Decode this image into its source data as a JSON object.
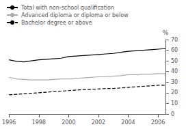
{
  "chart_data": {
    "type": "line",
    "x": [
      1996,
      1996.5,
      1997,
      1997.5,
      1998,
      1998.5,
      1999,
      1999.5,
      2000,
      2000.5,
      2001,
      2001.5,
      2002,
      2002.5,
      2003,
      2003.5,
      2004,
      2004.5,
      2005,
      2005.5,
      2006,
      2006.5
    ],
    "series": [
      {
        "name": "Total with non-school qualification",
        "color": "#000000",
        "line_style": "solid",
        "values": [
          51,
          49.5,
          49,
          50,
          51,
          51.5,
          52,
          52.5,
          54,
          54.5,
          55,
          55.5,
          56,
          56.5,
          57,
          58,
          59,
          59.5,
          60,
          60.5,
          61,
          61.5
        ]
      },
      {
        "name": "Advanced diploma or diploma or below",
        "color": "#aaaaaa",
        "line_style": "solid",
        "values": [
          34.5,
          33,
          32.5,
          32,
          32,
          32,
          32.5,
          33,
          33,
          33.5,
          34,
          34.5,
          35,
          35,
          35.5,
          36,
          37,
          37,
          37.5,
          37.5,
          38,
          38
        ]
      },
      {
        "name": "Bachelor degree or above",
        "color": "#000000",
        "line_style": "dashed",
        "values": [
          18,
          18.5,
          19,
          19.5,
          20,
          20.5,
          21,
          21.5,
          22,
          22.5,
          23,
          23,
          23.5,
          24,
          24,
          24.5,
          25,
          25.5,
          26,
          26.5,
          27,
          27
        ]
      }
    ],
    "ylabel": "%",
    "xlim": [
      1996,
      2006.5
    ],
    "xticks": [
      1996,
      1998,
      2000,
      2002,
      2004,
      2006
    ],
    "ylim": [
      0,
      70
    ],
    "yticks": [
      0,
      10,
      20,
      30,
      40,
      50,
      60,
      70
    ],
    "grid": false,
    "legend": "upper left"
  }
}
